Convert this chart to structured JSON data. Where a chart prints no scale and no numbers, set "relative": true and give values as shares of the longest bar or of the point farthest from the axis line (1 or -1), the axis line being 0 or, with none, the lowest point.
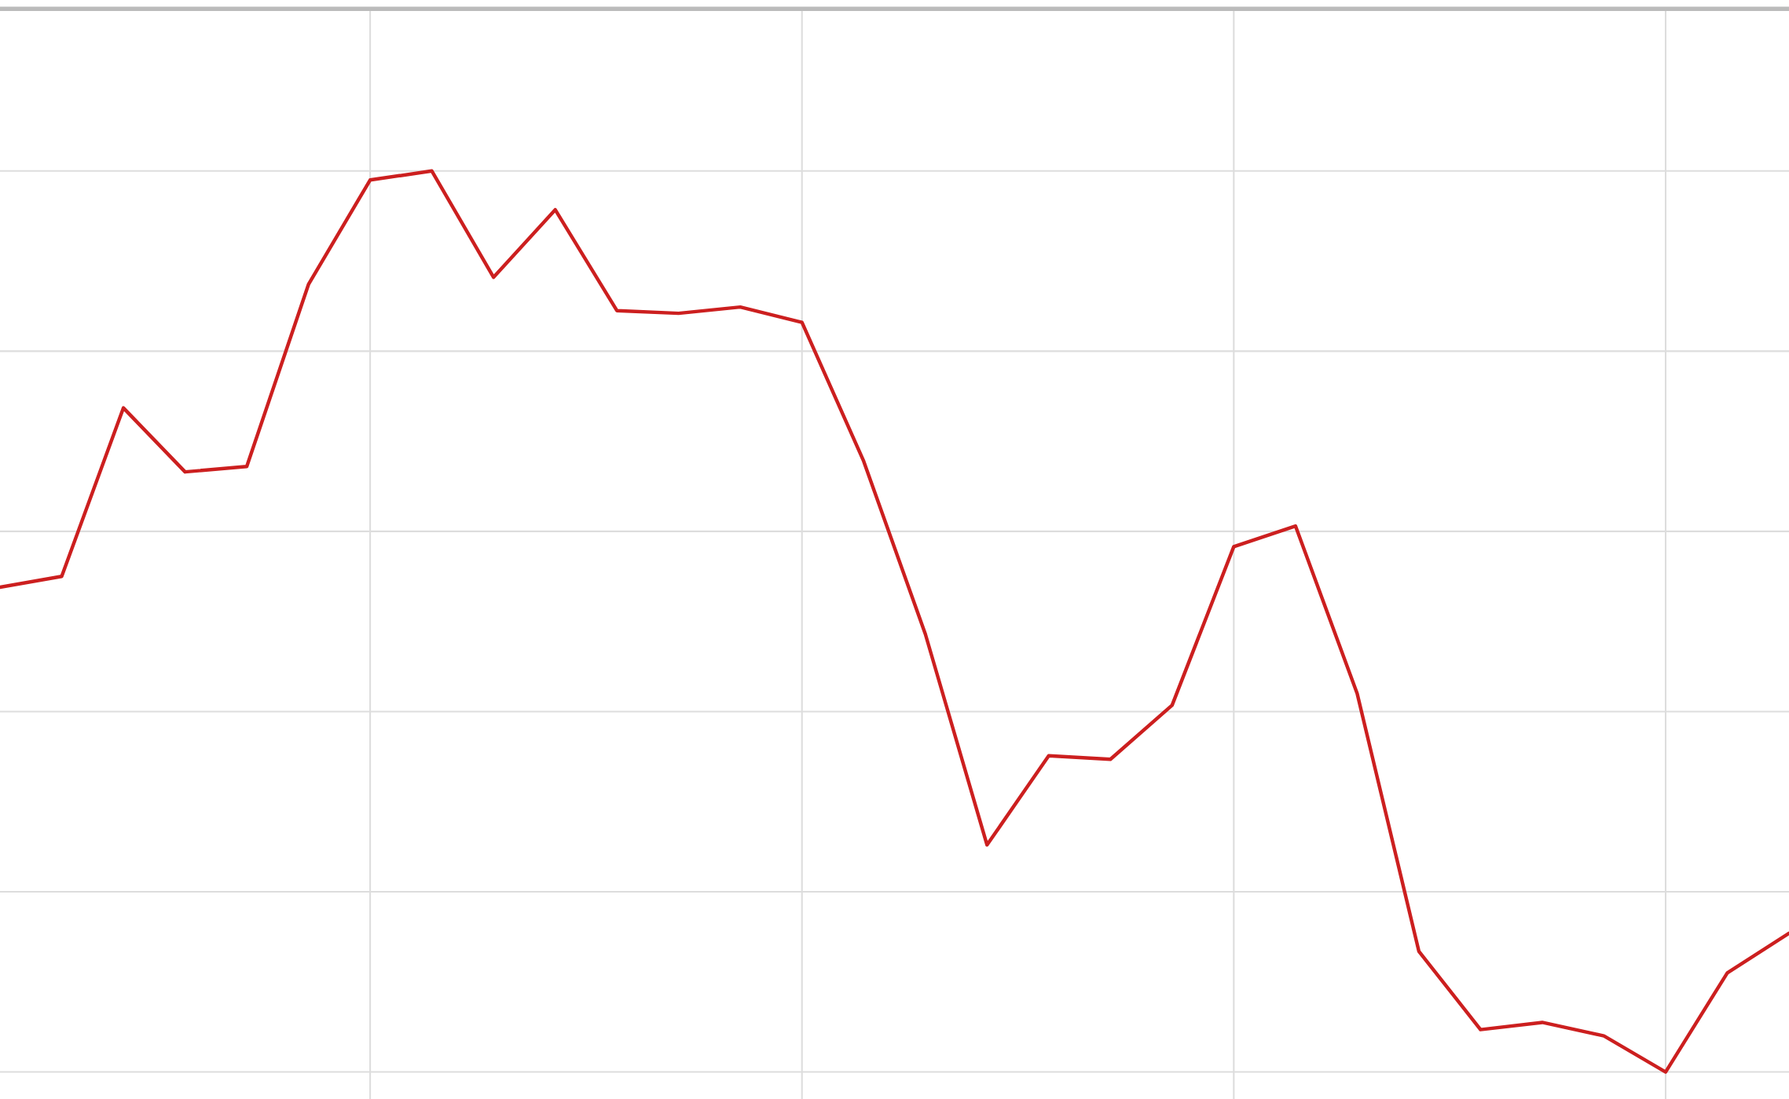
{
  "chart_data": {
    "type": "line",
    "relative": true,
    "grid": true,
    "marker": "none",
    "line_style": "solid",
    "categories": [
      null,
      null,
      null,
      null,
      null,
      null,
      null,
      null,
      null,
      null,
      null,
      null,
      null,
      null,
      null,
      null,
      null,
      null,
      null,
      null,
      null,
      null,
      null,
      null,
      null,
      null,
      null,
      null,
      null,
      null
    ],
    "series": [
      {
        "color": "#cc1f1f",
        "values": [
          0.538,
          0.55,
          0.737,
          0.666,
          0.672,
          0.874,
          0.99,
          1,
          0.882,
          0.957,
          0.845,
          0.842,
          0.849,
          0.832,
          0.678,
          0.486,
          0.252,
          0.351,
          0.347,
          0.407,
          0.583,
          0.606,
          0.42,
          0.134,
          0.047,
          0.055,
          0.04,
          0,
          0.11,
          0.154
        ]
      }
    ]
  }
}
